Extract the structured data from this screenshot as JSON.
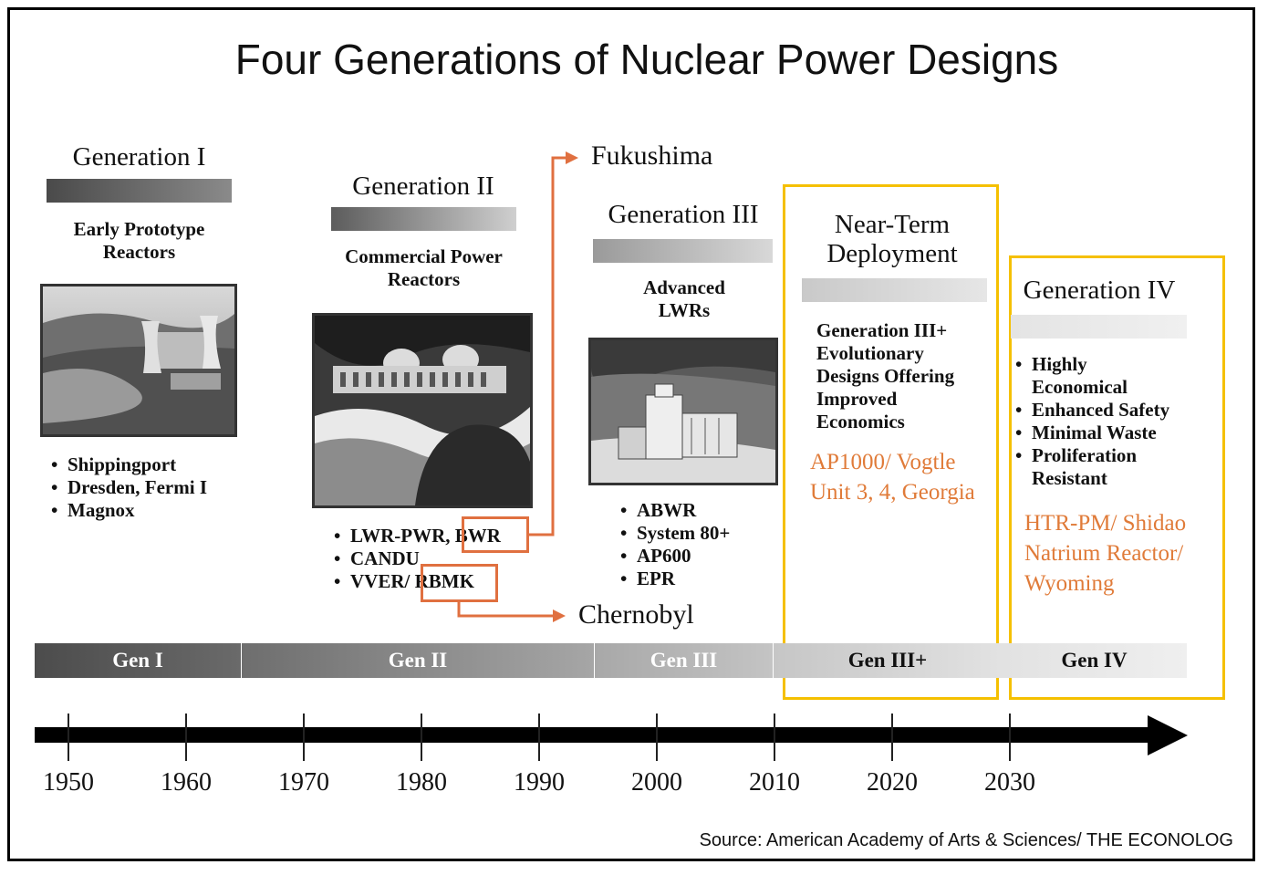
{
  "title": "Four Generations of Nuclear Power Designs",
  "generations": [
    {
      "name": "Generation I",
      "subtitle_lines": [
        "Early Prototype",
        "Reactors"
      ],
      "examples": [
        "Shippingport",
        "Dresden, Fermi I",
        "Magnox"
      ]
    },
    {
      "name": "Generation II",
      "subtitle_lines": [
        "Commercial Power",
        "Reactors"
      ],
      "examples": [
        "LWR-PWR, BWR",
        "CANDU",
        "VVER/ RBMK"
      ]
    },
    {
      "name": "Generation III",
      "subtitle_lines": [
        "Advanced",
        "LWRs"
      ],
      "examples": [
        "ABWR",
        "System 80+",
        "AP600",
        "EPR"
      ]
    },
    {
      "name_lines": [
        "Near-Term",
        "Deployment"
      ],
      "description_lines": [
        "Generation III+",
        "Evolutionary",
        "Designs Offering",
        "Improved",
        "Economics"
      ],
      "highlight_lines": [
        "AP1000/ Vogtle",
        "Unit 3, 4, Georgia"
      ]
    },
    {
      "name": "Generation IV",
      "features": [
        [
          "Highly",
          "Economical"
        ],
        [
          "Enhanced Safety"
        ],
        [
          "Minimal Waste"
        ],
        [
          "Proliferation",
          "Resistant"
        ]
      ],
      "highlight_lines": [
        "HTR-PM/ Shidao",
        "Natrium Reactor/",
        "Wyoming"
      ]
    }
  ],
  "events": {
    "fukushima": "Fukushima",
    "chernobyl": "Chernobyl"
  },
  "timeline_bands": [
    "Gen I",
    "Gen II",
    "Gen III",
    "Gen III+",
    "Gen IV"
  ],
  "years": [
    "1950",
    "1960",
    "1970",
    "1980",
    "1990",
    "2000",
    "2010",
    "2020",
    "2030"
  ],
  "source": "Source: American Academy of Arts & Sciences/ THE ECONOLOG",
  "colors": {
    "highlight_box": "#f5c000",
    "event_arrow": "#e07040",
    "highlight_text": "#e07b39"
  }
}
